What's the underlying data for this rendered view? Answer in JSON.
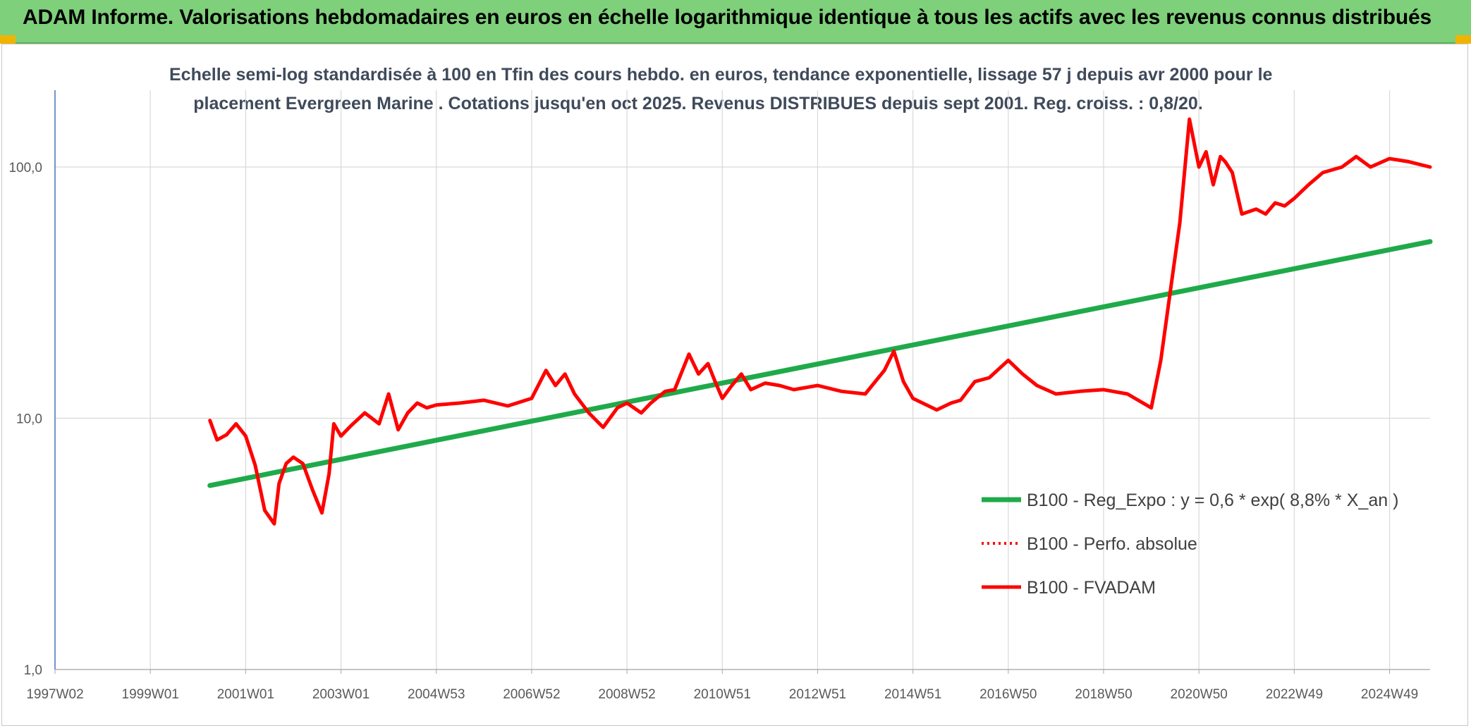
{
  "header": {
    "title": "ADAM Informe. Valorisations hebdomadaires en euros en échelle logarithmique identique à tous les actifs avec les revenus connus distribués"
  },
  "colors": {
    "banner": "#7ed07a",
    "trend": "#1faa4a",
    "price": "#ff0000",
    "accent": "#f0b400"
  },
  "chart_data": {
    "type": "line",
    "title_line1": "Echelle semi-log standardisée à 100 en Tfin des cours hebdo. en euros, tendance exponentielle, lissage 57 j depuis avr 2000 pour le",
    "title_line2": "placement Evergreen Marine . Cotations jusqu'en oct 2025. Revenus DISTRIBUES depuis sept 2001. Reg. croiss. : 0,8/20.",
    "y_scale": "log",
    "ylim": [
      1,
      180
    ],
    "y_ticks": [
      "1,0",
      "10,0",
      "100,0"
    ],
    "xlim": [
      1997.0,
      2025.85
    ],
    "x_tick_labels": [
      "1997W02",
      "1999W01",
      "2001W01",
      "2003W01",
      "2004W53",
      "2006W52",
      "2008W52",
      "2010W51",
      "2012W51",
      "2014W51",
      "2016W50",
      "2018W50",
      "2020W50",
      "2022W49",
      "2024W49"
    ],
    "x_tick_years": [
      1997.0,
      1999.0,
      2001.0,
      2003.0,
      2005.0,
      2007.0,
      2009.0,
      2011.0,
      2013.0,
      2015.0,
      2017.0,
      2019.0,
      2021.0,
      2023.0,
      2025.0
    ],
    "grid": true,
    "legend_position": "lower-right",
    "series": [
      {
        "name": "B100 - Reg_Expo : y = 0,6 * exp( 8,8% *  X_an )",
        "style": "solid-thick",
        "x": [
          2000.25,
          2025.85
        ],
        "y": [
          5.4,
          50.5
        ]
      },
      {
        "name": "B100 - Perfo. absolue",
        "style": "dotted",
        "x": [],
        "y": []
      },
      {
        "name": "B100 - FVADAM",
        "style": "solid",
        "x": [
          2000.25,
          2000.4,
          2000.6,
          2000.8,
          2001.0,
          2001.2,
          2001.4,
          2001.6,
          2001.7,
          2001.85,
          2002.0,
          2002.2,
          2002.4,
          2002.6,
          2002.75,
          2002.85,
          2003.0,
          2003.2,
          2003.5,
          2003.8,
          2004.0,
          2004.2,
          2004.4,
          2004.6,
          2004.8,
          2005.0,
          2005.5,
          2006.0,
          2006.5,
          2007.0,
          2007.3,
          2007.5,
          2007.7,
          2007.9,
          2008.2,
          2008.5,
          2008.8,
          2009.0,
          2009.3,
          2009.5,
          2009.8,
          2010.0,
          2010.3,
          2010.5,
          2010.7,
          2010.85,
          2011.0,
          2011.2,
          2011.4,
          2011.6,
          2011.9,
          2012.2,
          2012.5,
          2013.0,
          2013.5,
          2014.0,
          2014.4,
          2014.6,
          2014.8,
          2015.0,
          2015.2,
          2015.5,
          2015.8,
          2016.0,
          2016.3,
          2016.6,
          2017.0,
          2017.3,
          2017.6,
          2018.0,
          2018.5,
          2019.0,
          2019.5,
          2020.0,
          2020.2,
          2020.4,
          2020.6,
          2020.8,
          2021.0,
          2021.15,
          2021.3,
          2021.45,
          2021.55,
          2021.7,
          2021.9,
          2022.2,
          2022.4,
          2022.6,
          2022.8,
          2023.0,
          2023.3,
          2023.6,
          2024.0,
          2024.3,
          2024.6,
          2025.0,
          2025.4,
          2025.85
        ],
        "y": [
          9.8,
          8.2,
          8.6,
          9.5,
          8.5,
          6.5,
          4.3,
          3.8,
          5.5,
          6.6,
          7.0,
          6.6,
          5.2,
          4.2,
          6.0,
          9.5,
          8.5,
          9.3,
          10.5,
          9.5,
          12.5,
          9.0,
          10.5,
          11.5,
          11.0,
          11.3,
          11.5,
          11.8,
          11.2,
          12.0,
          15.5,
          13.5,
          15.0,
          12.5,
          10.5,
          9.2,
          11.0,
          11.5,
          10.5,
          11.5,
          12.8,
          13.0,
          18.0,
          15.0,
          16.5,
          14.0,
          12.0,
          13.5,
          15.0,
          13.0,
          13.8,
          13.5,
          13.0,
          13.5,
          12.8,
          12.5,
          15.5,
          18.5,
          14.0,
          12.0,
          11.5,
          10.8,
          11.5,
          11.8,
          14.0,
          14.5,
          17.0,
          15.0,
          13.5,
          12.5,
          12.8,
          13.0,
          12.5,
          11.0,
          17.0,
          32.0,
          60.0,
          155.0,
          100.0,
          115.0,
          85.0,
          110.0,
          105.0,
          95.0,
          65.0,
          68.0,
          65.0,
          72.0,
          70.0,
          75.0,
          85.0,
          95.0,
          100.0,
          110.0,
          100.0,
          108.0,
          105.0,
          100.0
        ]
      }
    ]
  }
}
